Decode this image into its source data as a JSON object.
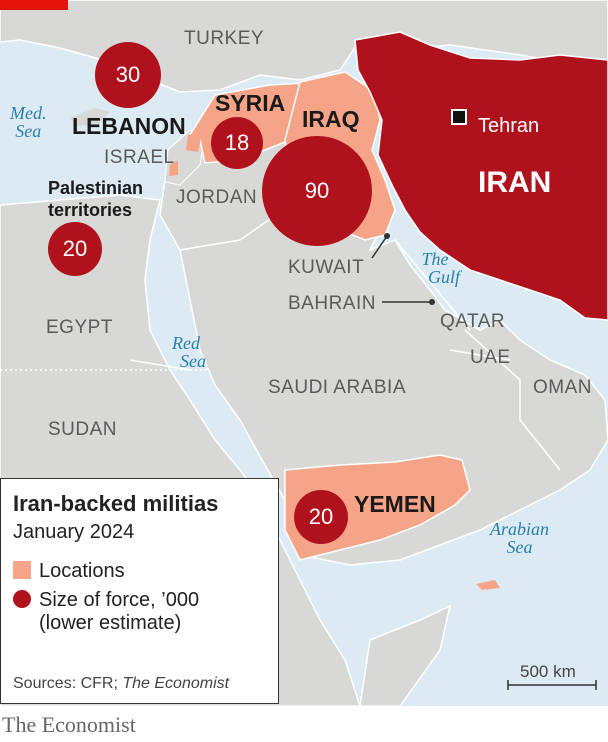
{
  "map": {
    "colors": {
      "sea": "#dcebf3",
      "land": "#d8d8d6",
      "iran": "#b0121d",
      "locations": "#f5a488",
      "bubble": "#b0121d"
    },
    "labels": {
      "turkey": "TURKEY",
      "med_sea_line1": "Med.",
      "med_sea_line2": "Sea",
      "lebanon": "LEBANON",
      "syria": "SYRIA",
      "iraq": "IRAQ",
      "israel": "ISRAEL",
      "palestinian_line1": "Palestinian",
      "palestinian_line2": "territories",
      "jordan": "JORDAN",
      "iran": "IRAN",
      "tehran": "Tehran",
      "kuwait": "KUWAIT",
      "bahrain": "BAHRAIN",
      "gulf_line1": "The",
      "gulf_line2": "Gulf",
      "qatar": "QATAR",
      "uae": "UAE",
      "egypt": "EGYPT",
      "red_sea_line1": "Red",
      "red_sea_line2": "Sea",
      "saudi_arabia": "SAUDI ARABIA",
      "oman": "OMAN",
      "sudan": "SUDAN",
      "yemen": "YEMEN",
      "arabian_sea_line1": "Arabian",
      "arabian_sea_line2": "Sea"
    },
    "forces": {
      "lebanon": "30",
      "syria": "18",
      "iraq": "90",
      "palestinian": "20",
      "yemen": "20"
    },
    "scale": "500 km"
  },
  "legend": {
    "title": "Iran-backed militias",
    "subtitle": "January 2024",
    "locations": "Locations",
    "size_line1": "Size of force, ’000",
    "size_line2": "(lower estimate)",
    "sources_prefix": "Sources: CFR; ",
    "sources_italic": "The Economist"
  },
  "footer": "The Economist"
}
